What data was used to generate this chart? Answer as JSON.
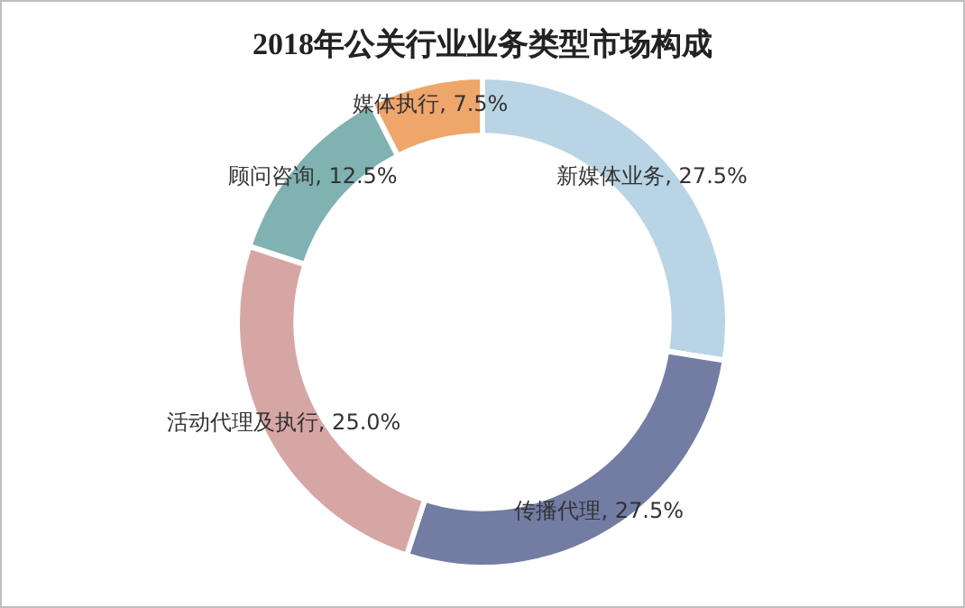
{
  "chart_data": {
    "type": "donut",
    "title": "2018年公关行业业务类型市场构成",
    "categories": [
      "新媒体业务",
      "传播代理",
      "活动代理及执行",
      "顾问咨询",
      "媒体执行"
    ],
    "values": [
      27.5,
      27.5,
      25.0,
      12.5,
      7.5
    ],
    "value_labels": [
      "27.5%",
      "27.5%",
      "25.0%",
      "12.5%",
      "7.5%"
    ],
    "colors": [
      "#b9d4e4",
      "#737ca3",
      "#d6a6a5",
      "#7fb2b1",
      "#eea66b"
    ],
    "legend": false
  }
}
